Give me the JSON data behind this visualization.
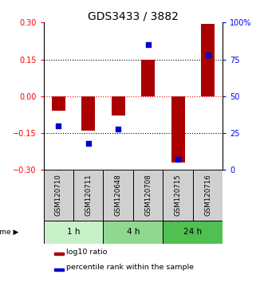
{
  "title": "GDS3433 / 3882",
  "samples": [
    "GSM120710",
    "GSM120711",
    "GSM120648",
    "GSM120708",
    "GSM120715",
    "GSM120716"
  ],
  "log10_ratio": [
    -0.06,
    -0.14,
    -0.08,
    0.15,
    -0.27,
    0.295
  ],
  "percentile_rank": [
    30,
    18,
    28,
    85,
    7,
    78
  ],
  "groups": [
    {
      "label": "1 h",
      "n": 2,
      "color": "#c8f0c8"
    },
    {
      "label": "4 h",
      "n": 2,
      "color": "#90d890"
    },
    {
      "label": "24 h",
      "n": 2,
      "color": "#50c050"
    }
  ],
  "ylim_left": [
    -0.3,
    0.3
  ],
  "ylim_right": [
    0,
    100
  ],
  "yticks_left": [
    -0.3,
    -0.15,
    0,
    0.15,
    0.3
  ],
  "yticks_right": [
    0,
    25,
    50,
    75,
    100
  ],
  "hlines_black": [
    0.15,
    -0.15
  ],
  "hline_red": 0,
  "bar_color": "#aa0000",
  "dot_color": "#0000cc",
  "bar_width": 0.45,
  "dot_size": 22,
  "legend_items": [
    "log10 ratio",
    "percentile rank within the sample"
  ],
  "legend_colors": [
    "#aa0000",
    "#0000cc"
  ],
  "sample_box_color": "#d0d0d0",
  "title_fontsize": 10,
  "tick_fontsize": 7,
  "axis_label_fontsize": 7
}
